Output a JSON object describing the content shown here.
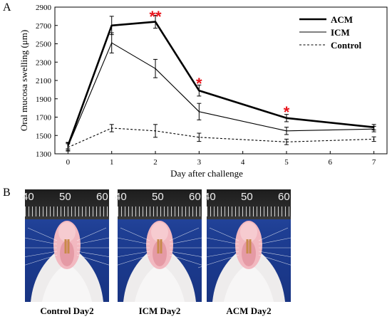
{
  "panels": {
    "a": "A",
    "b": "B"
  },
  "chart_data": {
    "type": "line",
    "x": [
      0,
      1,
      2,
      3,
      5,
      7
    ],
    "xlabel": "Day after challenge",
    "ylabel": "Oral mucosa swelling (μm)",
    "xlim": [
      -0.3,
      7.3
    ],
    "ylim": [
      1300,
      2900
    ],
    "xticks": [
      0,
      1,
      2,
      3,
      4,
      5,
      6,
      7
    ],
    "yticks": [
      1300,
      1500,
      1700,
      1900,
      2100,
      2300,
      2500,
      2700,
      2900
    ],
    "grid": false,
    "legend": "top-right",
    "series": [
      {
        "name": "ACM",
        "style": "thick-solid",
        "values": [
          1390,
          2700,
          2740,
          1990,
          1690,
          1590
        ],
        "err": [
          35,
          100,
          70,
          60,
          40,
          30
        ]
      },
      {
        "name": "ICM",
        "style": "thin-solid",
        "values": [
          1380,
          2510,
          2230,
          1760,
          1550,
          1570
        ],
        "err": [
          40,
          110,
          100,
          90,
          40,
          30
        ]
      },
      {
        "name": "Control",
        "style": "dashed",
        "values": [
          1370,
          1580,
          1550,
          1480,
          1430,
          1460
        ],
        "err": [
          40,
          40,
          70,
          45,
          30,
          25
        ]
      }
    ],
    "annotations": [
      {
        "text": "**",
        "x": 2,
        "y": 2800,
        "color": "#e8141b"
      },
      {
        "text": "*",
        "x": 3,
        "y": 2070,
        "color": "#e8141b"
      },
      {
        "text": "*",
        "x": 5,
        "y": 1760,
        "color": "#e8141b"
      }
    ]
  },
  "photos": [
    {
      "caption": "Control Day2",
      "ruler": [
        "40",
        "50",
        "60"
      ]
    },
    {
      "caption": "ICM Day2",
      "ruler": [
        "40",
        "50",
        "60"
      ]
    },
    {
      "caption": "ACM Day2",
      "ruler": [
        "40",
        "50",
        "60"
      ]
    }
  ]
}
